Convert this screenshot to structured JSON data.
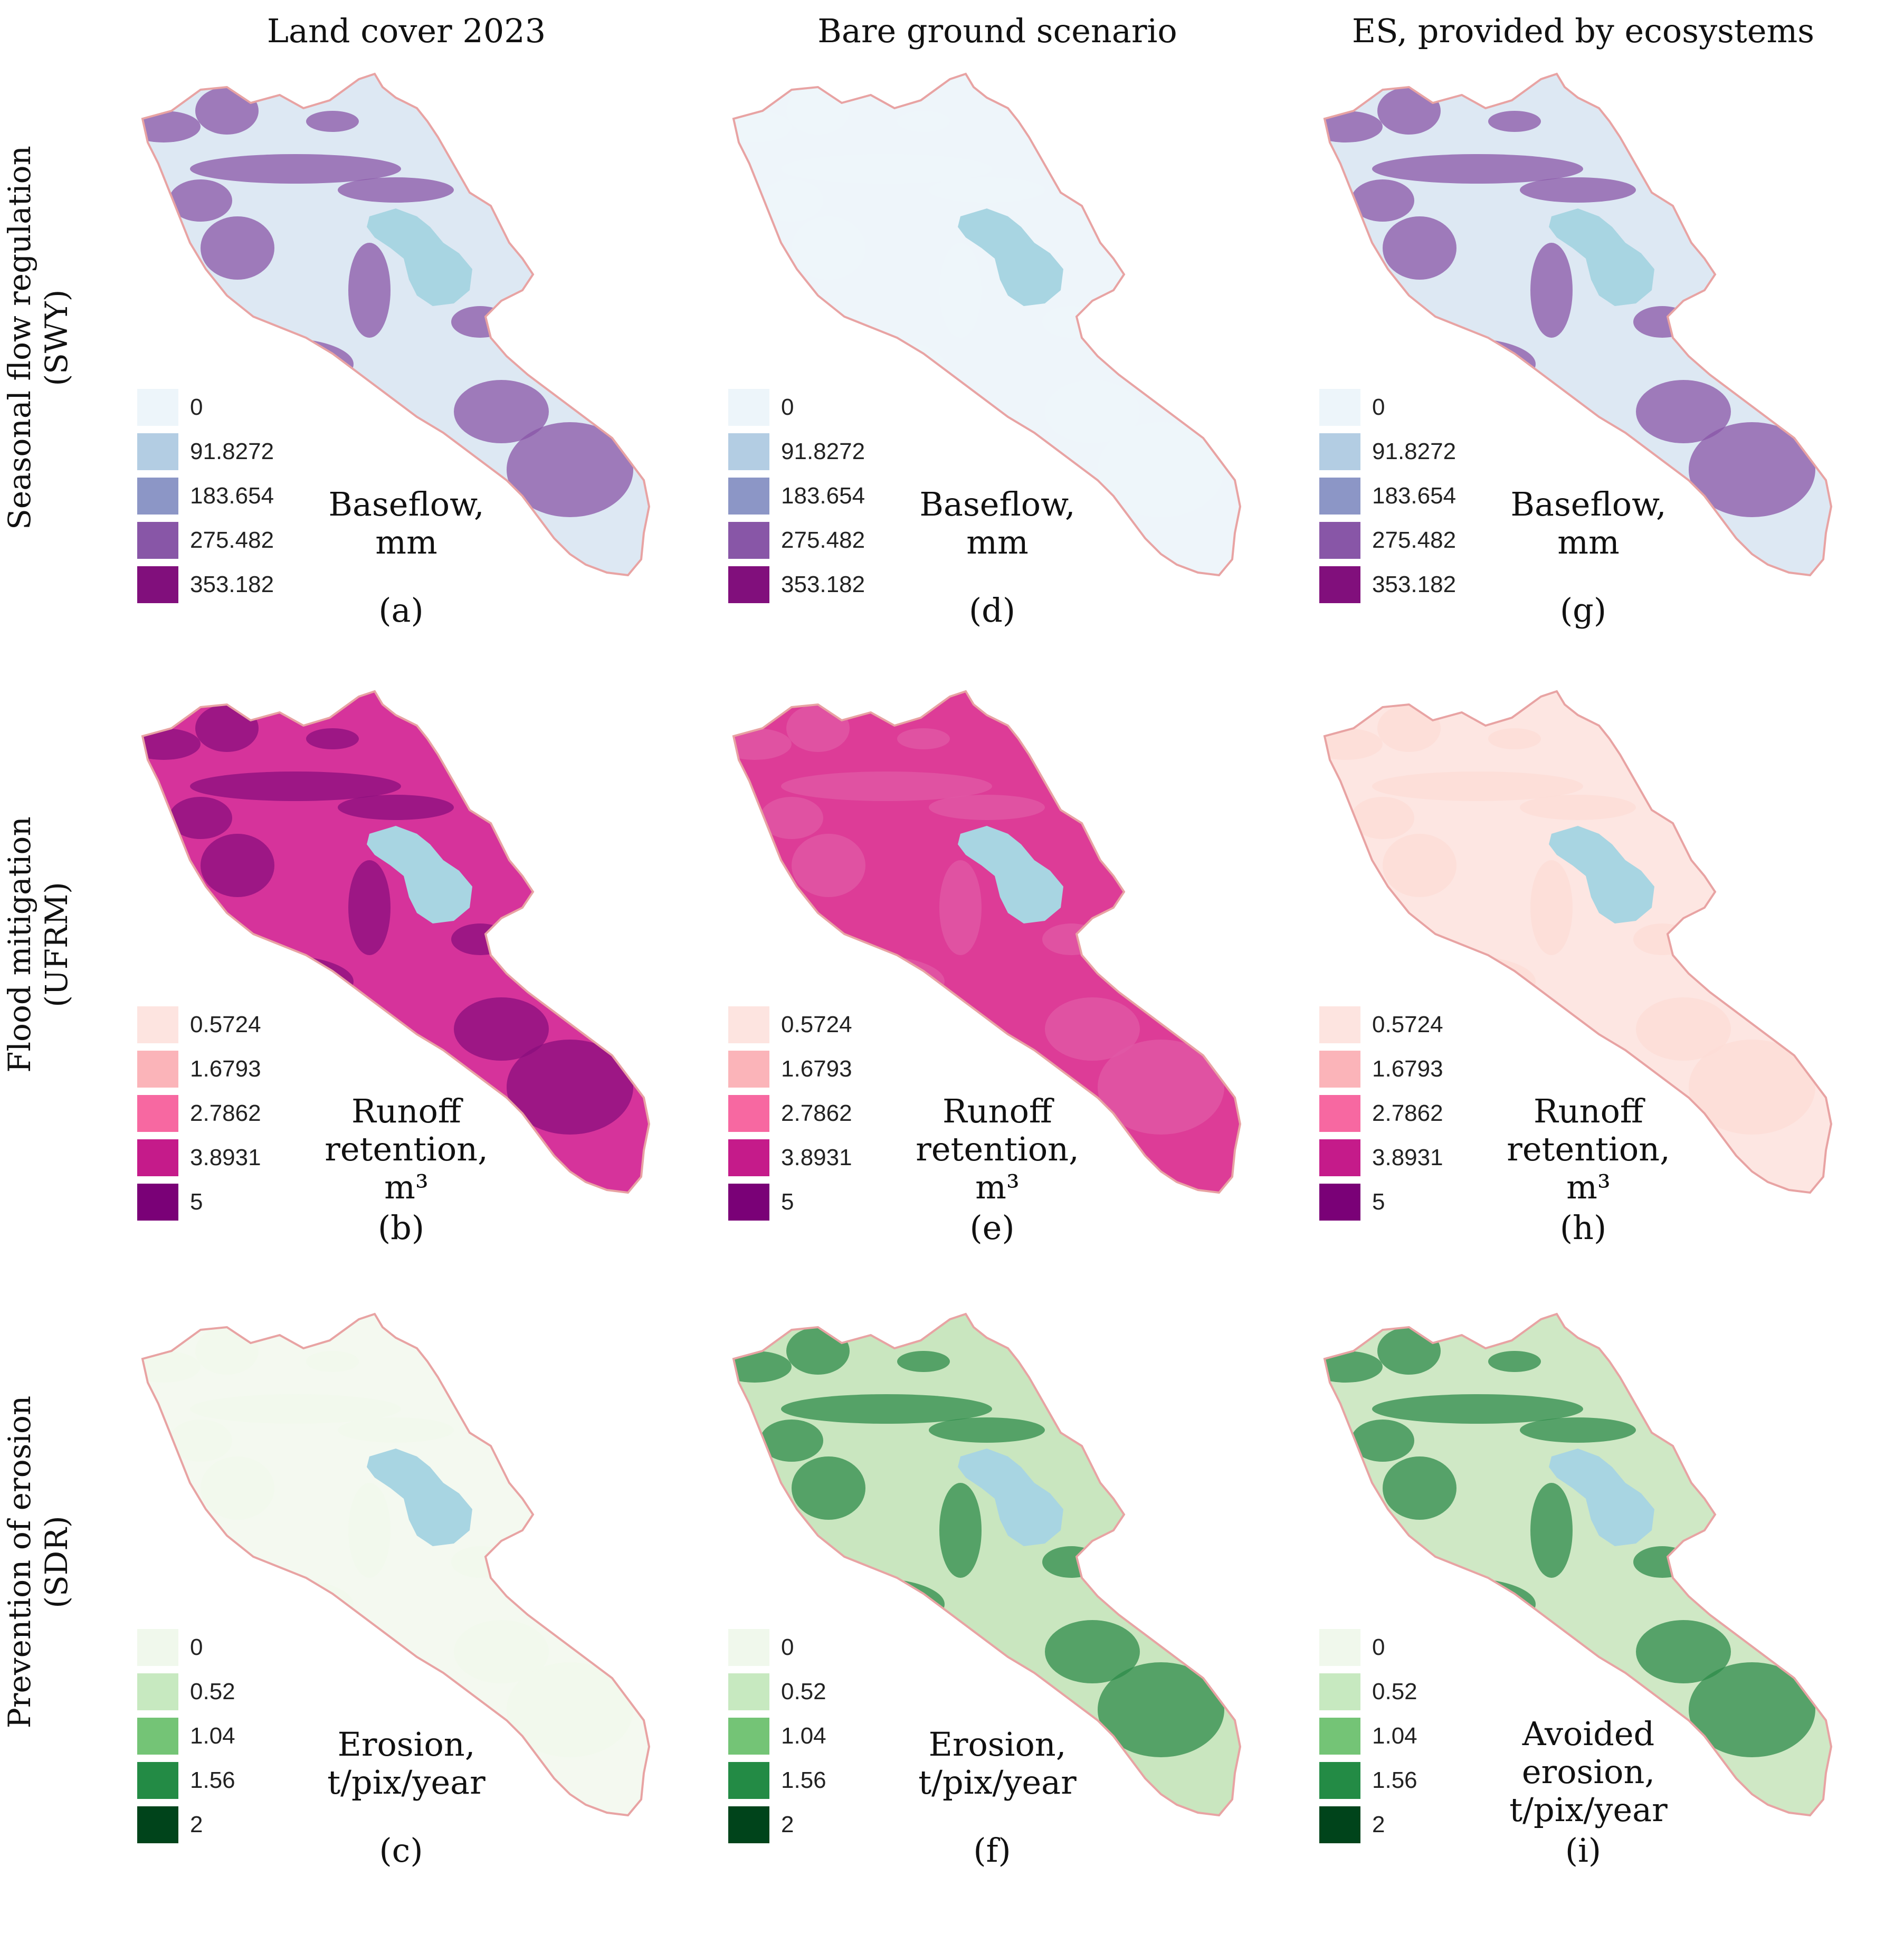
{
  "columns": [
    "Land cover 2023",
    "Bare ground scenario",
    "ES, provided by ecosystems"
  ],
  "rows": [
    {
      "label_line1": "Seasonal flow regulation",
      "label_line2": "(SWY)"
    },
    {
      "label_line1": "Flood mitigation",
      "label_line2": "(UFRM)"
    },
    {
      "label_line1": "Prevention of erosion",
      "label_line2": "(SDR)"
    }
  ],
  "legends": {
    "swy": {
      "values": [
        "0",
        "91.8272",
        "183.654",
        "275.482",
        "353.182"
      ],
      "colors": [
        "#edf5fa",
        "#b3cde3",
        "#8c96c6",
        "#8856a7",
        "#810f7c"
      ]
    },
    "ufrm": {
      "values": [
        "0.5724",
        "1.6793",
        "2.7862",
        "3.8931",
        "5"
      ],
      "colors": [
        "#fde4e0",
        "#fbb4b9",
        "#f768a1",
        "#c51b8a",
        "#7a0177"
      ]
    },
    "sdr": {
      "values": [
        "0",
        "0.52",
        "1.04",
        "1.56",
        "2"
      ],
      "colors": [
        "#f0f8ec",
        "#c7e9c0",
        "#74c476",
        "#238b45",
        "#00441b"
      ]
    }
  },
  "panels": [
    {
      "id": "(a)",
      "unit": [
        "Baseflow,",
        "mm"
      ],
      "fill": "#dde8f3",
      "hot": "#8856a7",
      "legend": "swy"
    },
    {
      "id": "(d)",
      "unit": [
        "Baseflow,",
        "mm"
      ],
      "fill": "#eef5fa",
      "hot": "#eef5fa",
      "legend": "swy"
    },
    {
      "id": "(g)",
      "unit": [
        "Baseflow,",
        "mm"
      ],
      "fill": "#dde8f3",
      "hot": "#8856a7",
      "legend": "swy"
    },
    {
      "id": "(b)",
      "unit": [
        "Runoff",
        "retention,",
        "m³"
      ],
      "fill": "#d6339b",
      "hot": "#8a0f7e",
      "legend": "ufrm"
    },
    {
      "id": "(e)",
      "unit": [
        "Runoff",
        "retention,",
        "m³"
      ],
      "fill": "#dd3c97",
      "hot": "#e05aa6",
      "legend": "ufrm"
    },
    {
      "id": "(h)",
      "unit": [
        "Runoff",
        "retention,",
        "m³"
      ],
      "fill": "#fde6e2",
      "hot": "#fcdcd6",
      "legend": "ufrm"
    },
    {
      "id": "(c)",
      "unit": [
        "Erosion,",
        "t/pix/year"
      ],
      "fill": "#f4f9f0",
      "hot": "#f1f8ec",
      "legend": "sdr"
    },
    {
      "id": "(f)",
      "unit": [
        "Erosion,",
        "t/pix/year"
      ],
      "fill": "#c9e6bf",
      "hot": "#2e8b4a",
      "legend": "sdr"
    },
    {
      "id": "(i)",
      "unit": [
        "Avoided",
        "erosion,",
        "t/pix/year"
      ],
      "fill": "#cfe8c5",
      "hot": "#2e8b4a",
      "legend": "sdr"
    }
  ],
  "colors": {
    "lake": "#a8d5e2",
    "border": "#e8a3a3"
  }
}
